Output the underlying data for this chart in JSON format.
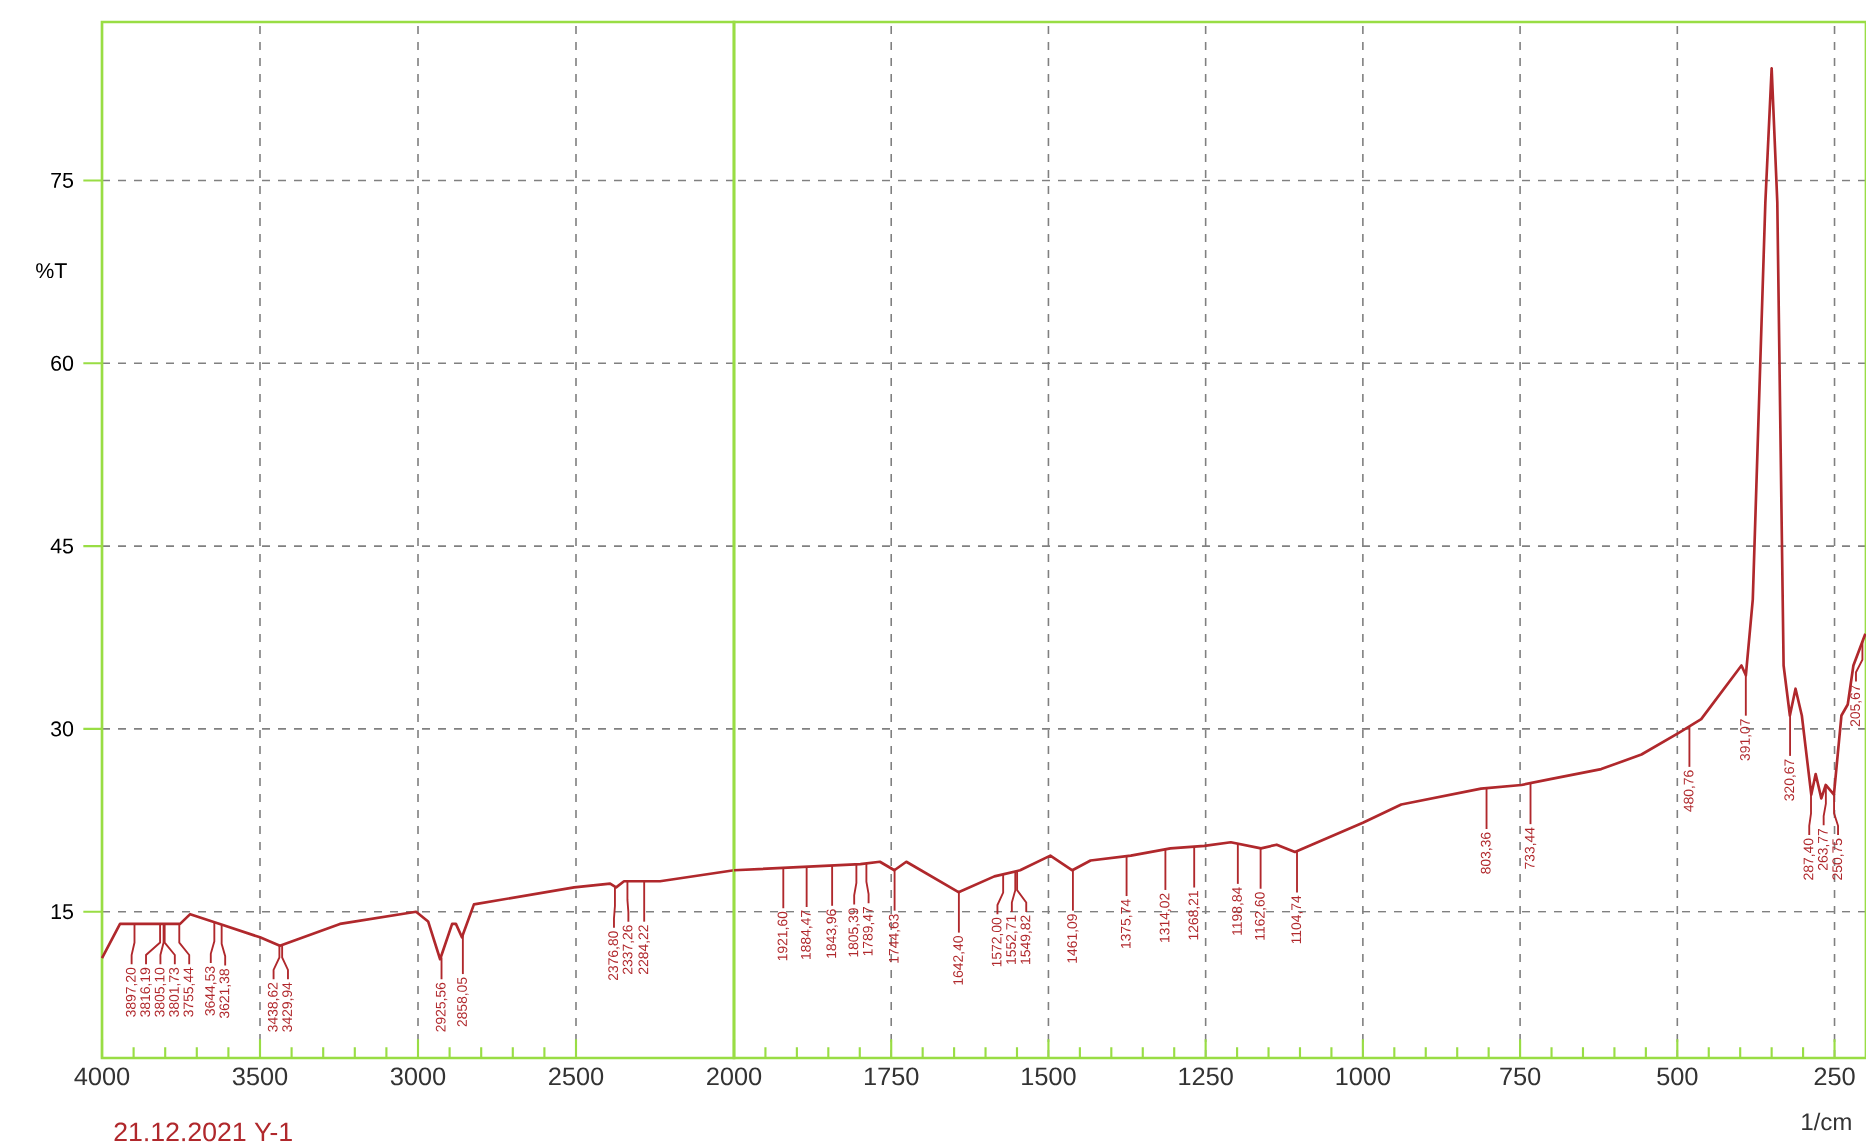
{
  "chart_data": [
    {
      "type": "line",
      "ylabel": "%T",
      "color": "#b0282c",
      "xlim": [
        4000,
        2000
      ],
      "ylim": [
        3,
        88
      ],
      "xticks": [
        4000,
        3500,
        3000,
        2500
      ],
      "yticks": [
        15,
        30,
        45,
        60,
        75
      ],
      "grid": true,
      "x": [
        4000,
        3943,
        3753,
        3721,
        3627,
        3500,
        3437,
        3247,
        3006,
        2968,
        2930,
        2892,
        2880,
        2861,
        2823,
        2506,
        2392,
        2373,
        2348,
        2234,
        2000
      ],
      "values": [
        11.2,
        14.0,
        14.0,
        14.8,
        14.0,
        12.9,
        12.2,
        14.0,
        15.0,
        14.2,
        11.1,
        14.0,
        14.0,
        12.9,
        15.6,
        17.0,
        17.3,
        17.0,
        17.5,
        17.5,
        18.4
      ],
      "annotations": [
        "21.12.2021 Y-1",
        {
          "text": "3897,20",
          "x": 3897.2,
          "y": 14.0
        },
        {
          "text": "3816,19",
          "x": 3816.19,
          "y": 14.0
        },
        {
          "text": "3805,10",
          "x": 3805.1,
          "y": 14.0
        },
        {
          "text": "3801,73",
          "x": 3801.73,
          "y": 14.0
        },
        {
          "text": "3755,44",
          "x": 3755.44,
          "y": 14.0
        },
        {
          "text": "3644,53",
          "x": 3644.53,
          "y": 14.1
        },
        {
          "text": "3621,38",
          "x": 3621.38,
          "y": 13.9
        },
        {
          "text": "3438,62",
          "x": 3438.62,
          "y": 12.2
        },
        {
          "text": "3429,94",
          "x": 3429.94,
          "y": 12.2
        },
        {
          "text": "2925,56",
          "x": 2925.56,
          "y": 11.1
        },
        {
          "text": "2858,05",
          "x": 2858.05,
          "y": 13.2
        },
        {
          "text": "2376,80",
          "x": 2376.8,
          "y": 17.0
        },
        {
          "text": "2337,26",
          "x": 2337.26,
          "y": 17.5
        },
        {
          "text": "2284,22",
          "x": 2284.22,
          "y": 17.5
        }
      ]
    },
    {
      "type": "line",
      "xlabel": "1/cm",
      "color": "#b0282c",
      "xlim": [
        2000,
        200
      ],
      "ylim": [
        3,
        88
      ],
      "xticks": [
        2000,
        1750,
        1500,
        1250,
        1000,
        750,
        500,
        250
      ],
      "yticks": [
        15,
        30,
        45,
        60,
        75
      ],
      "grid": true,
      "tick_labels": "x",
      "x": [
        2000,
        1799,
        1768,
        1745,
        1726,
        1643,
        1586,
        1545,
        1497,
        1462,
        1433,
        1369,
        1306,
        1252,
        1210,
        1162,
        1137,
        1108,
        1000,
        939,
        812,
        748,
        700,
        621,
        557,
        497,
        462,
        398,
        391,
        380,
        360,
        350,
        341,
        331,
        321,
        312,
        302,
        287,
        280,
        271,
        264,
        251,
        239,
        229,
        220,
        201
      ],
      "values": [
        18.4,
        18.9,
        19.1,
        18.4,
        19.1,
        16.6,
        17.9,
        18.4,
        19.6,
        18.4,
        19.2,
        19.6,
        20.2,
        20.4,
        20.7,
        20.2,
        20.5,
        19.9,
        22.3,
        23.8,
        25.1,
        25.4,
        25.9,
        26.7,
        27.9,
        29.7,
        30.8,
        35.2,
        34.4,
        40.6,
        73.2,
        84.2,
        73.2,
        35.2,
        31.1,
        33.3,
        31.1,
        24.6,
        26.3,
        24.3,
        25.4,
        24.6,
        31.1,
        32.0,
        35.2,
        37.8
      ],
      "annotations": [
        {
          "text": "1921,60",
          "x": 1921.6,
          "y": 18.6
        },
        {
          "text": "1884,47",
          "x": 1884.47,
          "y": 18.7
        },
        {
          "text": "1843,96",
          "x": 1843.96,
          "y": 18.8
        },
        {
          "text": "1805,39",
          "x": 1805.39,
          "y": 18.9
        },
        {
          "text": "1789,47",
          "x": 1789.47,
          "y": 19.0
        },
        {
          "text": "1744,63",
          "x": 1744.63,
          "y": 18.4
        },
        {
          "text": "1642,40",
          "x": 1642.4,
          "y": 16.6
        },
        {
          "text": "1572,00",
          "x": 1572.0,
          "y": 18.1
        },
        {
          "text": "1552,71",
          "x": 1552.71,
          "y": 18.3
        },
        {
          "text": "1549,82",
          "x": 1549.82,
          "y": 18.3
        },
        {
          "text": "1461,09",
          "x": 1461.09,
          "y": 18.4
        },
        {
          "text": "1375,74",
          "x": 1375.74,
          "y": 19.6
        },
        {
          "text": "1314,02",
          "x": 1314.02,
          "y": 20.1
        },
        {
          "text": "1268,21",
          "x": 1268.21,
          "y": 20.3
        },
        {
          "text": "1198,84",
          "x": 1198.84,
          "y": 20.6
        },
        {
          "text": "1162,60",
          "x": 1162.6,
          "y": 20.2
        },
        {
          "text": "1104,74",
          "x": 1104.74,
          "y": 19.9
        },
        {
          "text": "803,36",
          "x": 803.36,
          "y": 25.1
        },
        {
          "text": "733,44",
          "x": 733.44,
          "y": 25.5
        },
        {
          "text": "480,76",
          "x": 480.76,
          "y": 30.2
        },
        {
          "text": "391,07",
          "x": 391.07,
          "y": 34.4
        },
        {
          "text": "320,67",
          "x": 320.67,
          "y": 31.1
        },
        {
          "text": "287,40",
          "x": 287.4,
          "y": 24.6
        },
        {
          "text": "263,77",
          "x": 263.77,
          "y": 25.4
        },
        {
          "text": "250,75",
          "x": 250.75,
          "y": 24.6
        },
        {
          "text": "205,67",
          "x": 205.67,
          "y": 37.2
        }
      ]
    }
  ]
}
